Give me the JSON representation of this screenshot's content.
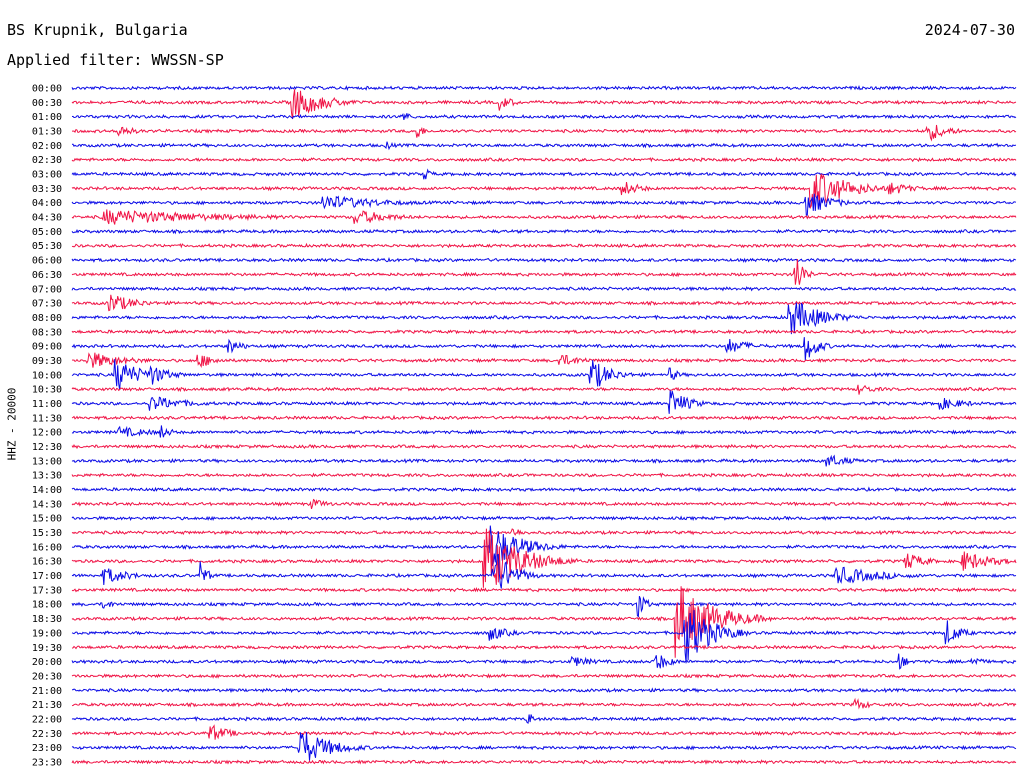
{
  "header": {
    "station": "BS Krupnik, Bulgaria",
    "filter": "Applied filter: WWSSN-SP",
    "date": "2024-07-30",
    "channel": "HHZ - 20000"
  },
  "colors": {
    "trace_a": "#0a0ae6",
    "trace_b": "#f01446"
  },
  "chart_data": {
    "type": "line",
    "title": "BS Krupnik, Bulgaria",
    "subtitle": "Applied filter: WWSSN-SP",
    "ylabel": "HHZ - 20000",
    "xlabel": "",
    "date": "2024-07-30",
    "rows": [
      "00:00",
      "00:30",
      "01:00",
      "01:30",
      "02:00",
      "02:30",
      "03:00",
      "03:30",
      "04:00",
      "04:30",
      "05:00",
      "05:30",
      "06:00",
      "06:30",
      "07:00",
      "07:30",
      "08:00",
      "08:30",
      "09:00",
      "09:30",
      "10:00",
      "10:30",
      "11:00",
      "11:30",
      "12:00",
      "12:30",
      "13:00",
      "13:30",
      "14:00",
      "14:30",
      "15:00",
      "15:30",
      "16:00",
      "16:30",
      "17:00",
      "17:30",
      "18:00",
      "18:30",
      "19:00",
      "19:30",
      "20:00",
      "20:30",
      "21:00",
      "21:30",
      "22:00",
      "22:30",
      "23:00",
      "23:30"
    ],
    "row_duration_minutes": 30,
    "series_colors_alternate": [
      "#0a0ae6",
      "#f01446"
    ],
    "events": [
      {
        "row": "00:30",
        "minute": 7.0,
        "amplitude": 1.3,
        "duration": 2.5
      },
      {
        "row": "00:30",
        "minute": 13.6,
        "amplitude": 0.6,
        "duration": 1.0
      },
      {
        "row": "01:00",
        "minute": 10.5,
        "amplitude": 0.4,
        "duration": 0.8
      },
      {
        "row": "01:30",
        "minute": 1.5,
        "amplitude": 0.5,
        "duration": 1.2
      },
      {
        "row": "01:30",
        "minute": 11.0,
        "amplitude": 0.6,
        "duration": 0.4
      },
      {
        "row": "01:30",
        "minute": 27.2,
        "amplitude": 0.8,
        "duration": 1.5
      },
      {
        "row": "02:00",
        "minute": 10.0,
        "amplitude": 0.4,
        "duration": 0.5
      },
      {
        "row": "03:00",
        "minute": 11.2,
        "amplitude": 0.5,
        "duration": 0.5
      },
      {
        "row": "03:30",
        "minute": 17.5,
        "amplitude": 0.6,
        "duration": 1.5
      },
      {
        "row": "03:30",
        "minute": 23.5,
        "amplitude": 1.6,
        "duration": 3.0
      },
      {
        "row": "03:30",
        "minute": 26.0,
        "amplitude": 0.5,
        "duration": 2.0
      },
      {
        "row": "04:00",
        "minute": 8.0,
        "amplitude": 0.6,
        "duration": 5.0
      },
      {
        "row": "04:00",
        "minute": 23.3,
        "amplitude": 1.0,
        "duration": 2.0
      },
      {
        "row": "04:30",
        "minute": 1.0,
        "amplitude": 0.6,
        "duration": 10.0
      },
      {
        "row": "04:30",
        "minute": 9.0,
        "amplitude": 0.6,
        "duration": 3.0
      },
      {
        "row": "06:30",
        "minute": 23.0,
        "amplitude": 2.0,
        "duration": 0.5
      },
      {
        "row": "07:30",
        "minute": 1.2,
        "amplitude": 0.8,
        "duration": 2.0
      },
      {
        "row": "08:00",
        "minute": 22.8,
        "amplitude": 1.5,
        "duration": 2.5
      },
      {
        "row": "09:00",
        "minute": 5.0,
        "amplitude": 0.6,
        "duration": 1.0
      },
      {
        "row": "09:00",
        "minute": 20.8,
        "amplitude": 0.6,
        "duration": 2.0
      },
      {
        "row": "09:00",
        "minute": 23.3,
        "amplitude": 1.2,
        "duration": 1.0
      },
      {
        "row": "09:30",
        "minute": 0.5,
        "amplitude": 0.7,
        "duration": 3.0
      },
      {
        "row": "09:30",
        "minute": 4.0,
        "amplitude": 0.6,
        "duration": 1.5
      },
      {
        "row": "09:30",
        "minute": 15.5,
        "amplitude": 0.5,
        "duration": 2.0
      },
      {
        "row": "10:00",
        "minute": 1.4,
        "amplitude": 1.3,
        "duration": 2.0
      },
      {
        "row": "10:00",
        "minute": 2.5,
        "amplitude": 0.8,
        "duration": 1.5
      },
      {
        "row": "10:00",
        "minute": 16.5,
        "amplitude": 1.3,
        "duration": 1.5
      },
      {
        "row": "10:00",
        "minute": 19.0,
        "amplitude": 0.5,
        "duration": 0.8
      },
      {
        "row": "10:30",
        "minute": 25.0,
        "amplitude": 0.4,
        "duration": 1.5
      },
      {
        "row": "11:00",
        "minute": 2.5,
        "amplitude": 0.6,
        "duration": 3.0
      },
      {
        "row": "11:00",
        "minute": 19.0,
        "amplitude": 1.1,
        "duration": 1.5
      },
      {
        "row": "11:00",
        "minute": 27.5,
        "amplitude": 0.5,
        "duration": 2.5
      },
      {
        "row": "12:00",
        "minute": 1.5,
        "amplitude": 0.4,
        "duration": 3.0
      },
      {
        "row": "12:00",
        "minute": 2.8,
        "amplitude": 0.6,
        "duration": 0.8
      },
      {
        "row": "13:00",
        "minute": 24.0,
        "amplitude": 0.5,
        "duration": 2.0
      },
      {
        "row": "14:30",
        "minute": 7.6,
        "amplitude": 0.4,
        "duration": 1.5
      },
      {
        "row": "15:30",
        "minute": 14.0,
        "amplitude": 0.4,
        "duration": 1.0
      },
      {
        "row": "16:00",
        "minute": 13.3,
        "amplitude": 1.8,
        "duration": 2.5
      },
      {
        "row": "16:30",
        "minute": 13.1,
        "amplitude": 2.6,
        "duration": 3.0
      },
      {
        "row": "16:30",
        "minute": 26.5,
        "amplitude": 0.7,
        "duration": 1.5
      },
      {
        "row": "16:30",
        "minute": 28.3,
        "amplitude": 0.8,
        "duration": 2.5
      },
      {
        "row": "17:00",
        "minute": 1.0,
        "amplitude": 0.7,
        "duration": 2.0
      },
      {
        "row": "17:00",
        "minute": 4.1,
        "amplitude": 1.0,
        "duration": 0.5
      },
      {
        "row": "17:00",
        "minute": 13.4,
        "amplitude": 2.0,
        "duration": 1.5
      },
      {
        "row": "17:00",
        "minute": 24.3,
        "amplitude": 0.7,
        "duration": 4.0
      },
      {
        "row": "18:00",
        "minute": 1.0,
        "amplitude": 0.4,
        "duration": 1.0
      },
      {
        "row": "18:00",
        "minute": 18.0,
        "amplitude": 1.1,
        "duration": 0.5
      },
      {
        "row": "18:30",
        "minute": 19.2,
        "amplitude": 2.8,
        "duration": 3.0
      },
      {
        "row": "19:00",
        "minute": 13.3,
        "amplitude": 0.6,
        "duration": 1.5
      },
      {
        "row": "19:00",
        "minute": 19.5,
        "amplitude": 2.5,
        "duration": 2.0
      },
      {
        "row": "19:00",
        "minute": 27.8,
        "amplitude": 1.0,
        "duration": 1.0
      },
      {
        "row": "20:00",
        "minute": 15.9,
        "amplitude": 0.4,
        "duration": 2.0
      },
      {
        "row": "20:00",
        "minute": 18.5,
        "amplitude": 0.9,
        "duration": 1.0
      },
      {
        "row": "20:00",
        "minute": 26.3,
        "amplitude": 0.7,
        "duration": 0.5
      },
      {
        "row": "20:00",
        "minute": 28.6,
        "amplitude": 0.4,
        "duration": 1.0
      },
      {
        "row": "21:30",
        "minute": 24.9,
        "amplitude": 0.5,
        "duration": 1.0
      },
      {
        "row": "22:00",
        "minute": 14.5,
        "amplitude": 0.6,
        "duration": 0.3
      },
      {
        "row": "22:30",
        "minute": 4.4,
        "amplitude": 0.7,
        "duration": 1.5
      },
      {
        "row": "23:00",
        "minute": 7.2,
        "amplitude": 1.5,
        "duration": 2.5
      }
    ],
    "grid": false,
    "legend": "none"
  }
}
